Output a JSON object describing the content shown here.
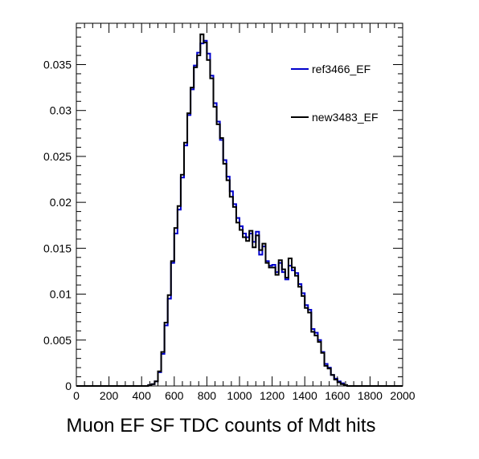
{
  "chart_data": {
    "type": "histogram",
    "title": "",
    "xlabel": "Muon EF SF TDC counts of Mdt hits",
    "ylabel": "",
    "xlim": [
      0,
      2000
    ],
    "ylim": [
      0,
      0.0395
    ],
    "x_ticks": [
      "0",
      "200",
      "400",
      "600",
      "800",
      "1000",
      "1200",
      "1400",
      "1600",
      "1800",
      "2000"
    ],
    "x_tick_values": [
      0,
      200,
      400,
      600,
      800,
      1000,
      1200,
      1400,
      1600,
      1800,
      2000
    ],
    "y_ticks": [
      "0",
      "0.005",
      "0.01",
      "0.015",
      "0.02",
      "0.025",
      "0.03",
      "0.035"
    ],
    "y_tick_values": [
      0,
      0.005,
      0.01,
      0.015,
      0.02,
      0.025,
      0.03,
      0.035
    ],
    "grid": false,
    "legend_position": "top-right",
    "bin_width": 20,
    "bin_edges": [
      0,
      20,
      40,
      60,
      80,
      100,
      120,
      140,
      160,
      180,
      200,
      220,
      240,
      260,
      280,
      300,
      320,
      340,
      360,
      380,
      400,
      420,
      440,
      460,
      480,
      500,
      520,
      540,
      560,
      580,
      600,
      620,
      640,
      660,
      680,
      700,
      720,
      740,
      760,
      780,
      800,
      820,
      840,
      860,
      880,
      900,
      920,
      940,
      960,
      980,
      1000,
      1020,
      1040,
      1060,
      1080,
      1100,
      1120,
      1140,
      1160,
      1180,
      1200,
      1220,
      1240,
      1260,
      1280,
      1300,
      1320,
      1340,
      1360,
      1380,
      1400,
      1420,
      1440,
      1460,
      1480,
      1500,
      1520,
      1540,
      1560,
      1580,
      1600,
      1620,
      1640,
      1660,
      1680,
      1700,
      1720,
      1740,
      1760,
      1780,
      1800,
      1820,
      1840,
      1860,
      1880,
      1900,
      1920,
      1940,
      1960,
      1980,
      2000
    ],
    "series": [
      {
        "name": "ref3466_EF",
        "color": "#0000cc",
        "values": [
          0,
          0,
          0,
          0,
          0,
          0,
          0,
          0,
          0,
          0,
          0,
          0,
          0,
          0,
          0,
          0,
          0,
          0,
          0,
          0,
          0,
          0,
          0.0001,
          0.0002,
          0.0005,
          0.0015,
          0.0035,
          0.0066,
          0.0095,
          0.0134,
          0.0166,
          0.0192,
          0.0227,
          0.0262,
          0.0295,
          0.0323,
          0.0349,
          0.0363,
          0.0373,
          0.0376,
          0.0362,
          0.0338,
          0.0308,
          0.0288,
          0.0268,
          0.0246,
          0.0228,
          0.0212,
          0.0198,
          0.0183,
          0.0174,
          0.0166,
          0.0162,
          0.0166,
          0.0157,
          0.0168,
          0.0143,
          0.0152,
          0.0136,
          0.0131,
          0.0132,
          0.0124,
          0.0134,
          0.0124,
          0.0116,
          0.0131,
          0.0126,
          0.0123,
          0.0111,
          0.0101,
          0.0088,
          0.0083,
          0.0062,
          0.0058,
          0.005,
          0.0037,
          0.0024,
          0.002,
          0.0012,
          0.0008,
          0.0005,
          0.0003,
          0.0001,
          0,
          0,
          0,
          0,
          0,
          0,
          0,
          0,
          0,
          0,
          0,
          0,
          0,
          0,
          0,
          0,
          0
        ]
      },
      {
        "name": "new3483_EF",
        "color": "#000000",
        "values": [
          0,
          0,
          0,
          0,
          0,
          0,
          0,
          0,
          0,
          0,
          0,
          0,
          0,
          0,
          0,
          0,
          0,
          0,
          0,
          0,
          0,
          0,
          0.0001,
          0.0002,
          0.0005,
          0.0016,
          0.0037,
          0.0069,
          0.0099,
          0.0136,
          0.0172,
          0.0196,
          0.023,
          0.0265,
          0.0297,
          0.0325,
          0.0347,
          0.036,
          0.0383,
          0.0374,
          0.0355,
          0.0335,
          0.0304,
          0.0285,
          0.027,
          0.0242,
          0.0224,
          0.0206,
          0.0195,
          0.0178,
          0.017,
          0.0162,
          0.0158,
          0.0169,
          0.0151,
          0.0164,
          0.0148,
          0.0155,
          0.0134,
          0.0129,
          0.0129,
          0.0121,
          0.0137,
          0.0127,
          0.0118,
          0.0139,
          0.0129,
          0.012,
          0.0108,
          0.0098,
          0.0085,
          0.008,
          0.0059,
          0.0055,
          0.0048,
          0.0036,
          0.0022,
          0.0019,
          0.0012,
          0.0007,
          0.0004,
          0.0002,
          0.0001,
          0,
          0,
          0,
          0,
          0,
          0,
          0,
          0,
          0,
          0,
          0,
          0,
          0,
          0,
          0,
          0,
          0
        ]
      }
    ]
  }
}
